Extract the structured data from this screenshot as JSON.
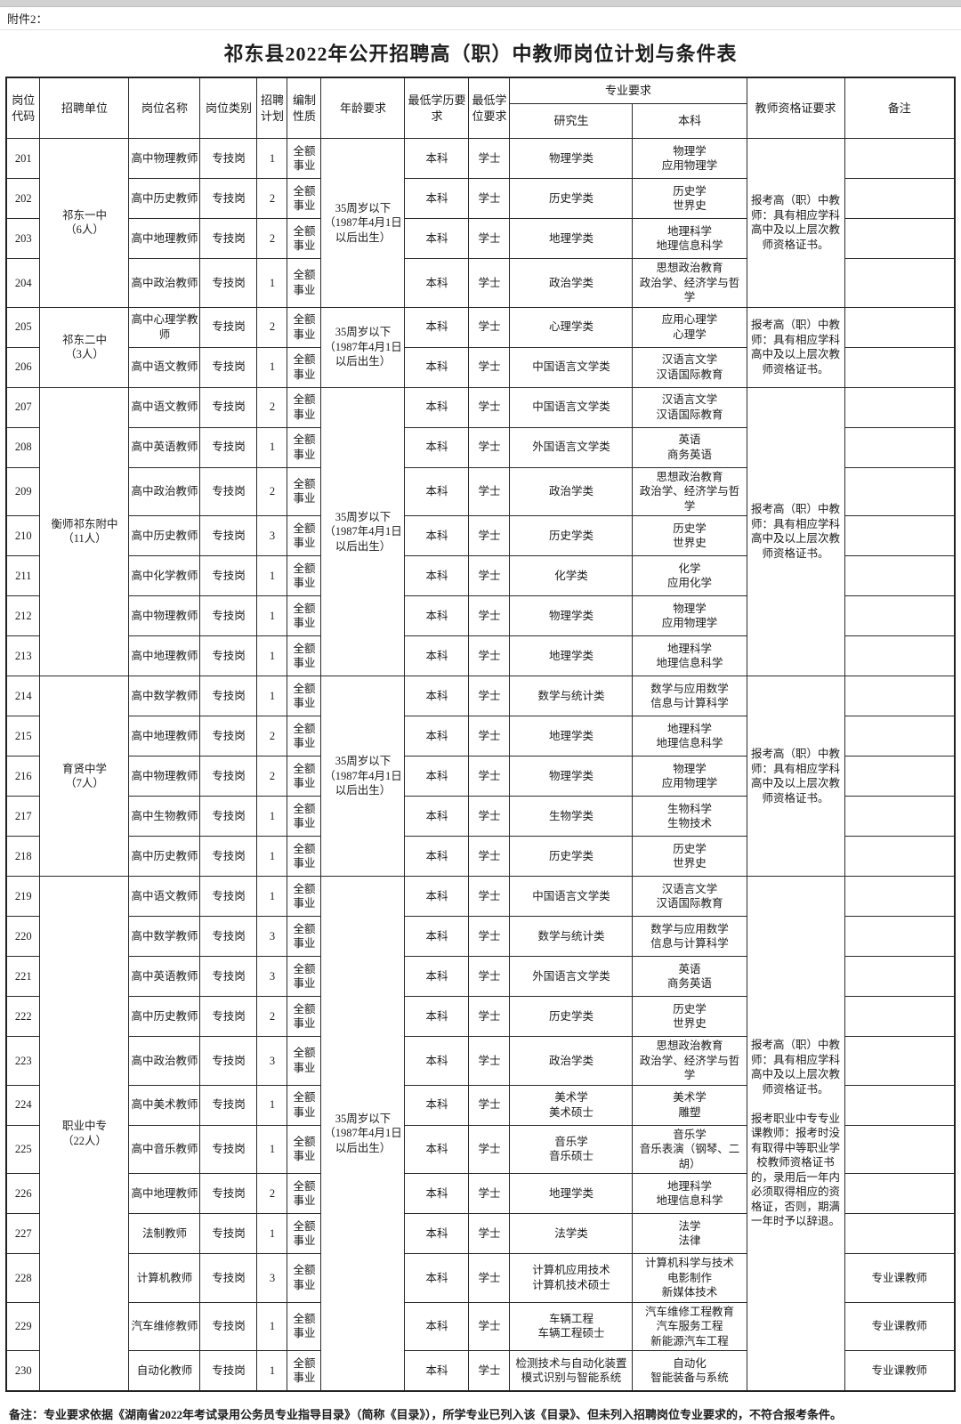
{
  "page": {
    "attachment_label": "附件2：",
    "title": "祁东县2022年公开招聘高（职）中教师岗位计划与条件表",
    "footer_note": "备注：专业要求依据《湖南省2022年考试录用公务员专业指导目录》（简称《目录》），所学专业已列入该《目录》、但未列入招聘岗位专业要求的，不符合报考条件。"
  },
  "table": {
    "headers": {
      "code": "岗位代码",
      "unit": "招聘单位",
      "post": "岗位名称",
      "category": "岗位类别",
      "plan": "招聘计划",
      "nature": "编制性质",
      "age": "年龄要求",
      "min_edu": "最低学历要求",
      "min_degree": "最低学位要求",
      "major": "专业要求",
      "major_grad": "研究生",
      "major_bachelor": "本科",
      "cert": "教师资格证要求",
      "remark": "备注"
    },
    "age_requirement": "35周岁以下（1987年4月1日以后出生）",
    "cert_texts": {
      "high_school": "报考高（职）中教师：具有相应学科高中及以上层次教师资格证书。",
      "vocational": "报考职业中专专业课教师：报考时没有取得中等职业学校教师资格证书的，录用后一年内必须取得相应的资格证，否则，期满一年时予以辞退。"
    },
    "rows": [
      {
        "code": "201",
        "unit": "祁东一中\n（6人）",
        "unit_span": 4,
        "post": "高中物理教师",
        "category": "专技岗",
        "plan": "1",
        "nature": "全额事业",
        "age_span": 4,
        "edu": "本科",
        "degree": "学士",
        "grad": "物理学类",
        "bachelor": "物理学\n应用物理学",
        "cert": [
          "high_school"
        ],
        "cert_span": 4,
        "remark": ""
      },
      {
        "code": "202",
        "post": "高中历史教师",
        "category": "专技岗",
        "plan": "2",
        "nature": "全额事业",
        "edu": "本科",
        "degree": "学士",
        "grad": "历史学类",
        "bachelor": "历史学\n世界史",
        "remark": ""
      },
      {
        "code": "203",
        "post": "高中地理教师",
        "category": "专技岗",
        "plan": "2",
        "nature": "全额事业",
        "edu": "本科",
        "degree": "学士",
        "grad": "地理学类",
        "bachelor": "地理科学\n地理信息科学",
        "remark": ""
      },
      {
        "code": "204",
        "post": "高中政治教师",
        "category": "专技岗",
        "plan": "1",
        "nature": "全额事业",
        "edu": "本科",
        "degree": "学士",
        "grad": "政治学类",
        "bachelor": "思想政治教育\n政治学、经济学与哲学",
        "remark": ""
      },
      {
        "code": "205",
        "unit": "祁东二中\n（3人）",
        "unit_span": 2,
        "post": "高中心理学教师",
        "category": "专技岗",
        "plan": "2",
        "nature": "全额事业",
        "age_span": 2,
        "edu": "本科",
        "degree": "学士",
        "grad": "心理学类",
        "bachelor": "应用心理学\n心理学",
        "cert": [
          "high_school"
        ],
        "cert_span": 2,
        "remark": ""
      },
      {
        "code": "206",
        "post": "高中语文教师",
        "category": "专技岗",
        "plan": "1",
        "nature": "全额事业",
        "edu": "本科",
        "degree": "学士",
        "grad": "中国语言文学类",
        "bachelor": "汉语言文学\n汉语国际教育",
        "remark": ""
      },
      {
        "code": "207",
        "unit": "衡师祁东附中\n（11人）",
        "unit_span": 7,
        "post": "高中语文教师",
        "category": "专技岗",
        "plan": "2",
        "nature": "全额事业",
        "age_span": 7,
        "edu": "本科",
        "degree": "学士",
        "grad": "中国语言文学类",
        "bachelor": "汉语言文学\n汉语国际教育",
        "cert": [
          "high_school"
        ],
        "cert_span": 7,
        "remark": ""
      },
      {
        "code": "208",
        "post": "高中英语教师",
        "category": "专技岗",
        "plan": "1",
        "nature": "全额事业",
        "edu": "本科",
        "degree": "学士",
        "grad": "外国语言文学类",
        "bachelor": "英语\n商务英语",
        "remark": ""
      },
      {
        "code": "209",
        "post": "高中政治教师",
        "category": "专技岗",
        "plan": "2",
        "nature": "全额事业",
        "edu": "本科",
        "degree": "学士",
        "grad": "政治学类",
        "bachelor": "思想政治教育\n政治学、经济学与哲学",
        "remark": ""
      },
      {
        "code": "210",
        "post": "高中历史教师",
        "category": "专技岗",
        "plan": "3",
        "nature": "全额事业",
        "edu": "本科",
        "degree": "学士",
        "grad": "历史学类",
        "bachelor": "历史学\n世界史",
        "remark": ""
      },
      {
        "code": "211",
        "post": "高中化学教师",
        "category": "专技岗",
        "plan": "1",
        "nature": "全额事业",
        "edu": "本科",
        "degree": "学士",
        "grad": "化学类",
        "bachelor": "化学\n应用化学",
        "remark": ""
      },
      {
        "code": "212",
        "post": "高中物理教师",
        "category": "专技岗",
        "plan": "1",
        "nature": "全额事业",
        "edu": "本科",
        "degree": "学士",
        "grad": "物理学类",
        "bachelor": "物理学\n应用物理学",
        "remark": ""
      },
      {
        "code": "213",
        "post": "高中地理教师",
        "category": "专技岗",
        "plan": "1",
        "nature": "全额事业",
        "edu": "本科",
        "degree": "学士",
        "grad": "地理学类",
        "bachelor": "地理科学\n地理信息科学",
        "remark": ""
      },
      {
        "code": "214",
        "unit": "育贤中学\n（7人）",
        "unit_span": 5,
        "post": "高中数学教师",
        "category": "专技岗",
        "plan": "1",
        "nature": "全额事业",
        "age_span": 5,
        "edu": "本科",
        "degree": "学士",
        "grad": "数学与统计类",
        "bachelor": "数学与应用数学\n信息与计算科学",
        "cert": [
          "high_school"
        ],
        "cert_span": 5,
        "remark": ""
      },
      {
        "code": "215",
        "post": "高中地理教师",
        "category": "专技岗",
        "plan": "2",
        "nature": "全额事业",
        "edu": "本科",
        "degree": "学士",
        "grad": "地理学类",
        "bachelor": "地理科学\n地理信息科学",
        "remark": ""
      },
      {
        "code": "216",
        "post": "高中物理教师",
        "category": "专技岗",
        "plan": "2",
        "nature": "全额事业",
        "edu": "本科",
        "degree": "学士",
        "grad": "物理学类",
        "bachelor": "物理学\n应用物理学",
        "remark": ""
      },
      {
        "code": "217",
        "post": "高中生物教师",
        "category": "专技岗",
        "plan": "1",
        "nature": "全额事业",
        "edu": "本科",
        "degree": "学士",
        "grad": "生物学类",
        "bachelor": "生物科学\n生物技术",
        "remark": ""
      },
      {
        "code": "218",
        "post": "高中历史教师",
        "category": "专技岗",
        "plan": "1",
        "nature": "全额事业",
        "edu": "本科",
        "degree": "学士",
        "grad": "历史学类",
        "bachelor": "历史学\n世界史",
        "remark": ""
      },
      {
        "code": "219",
        "unit": "职业中专\n（22人）",
        "unit_span": 12,
        "post": "高中语文教师",
        "category": "专技岗",
        "plan": "1",
        "nature": "全额事业",
        "age_span": 12,
        "edu": "本科",
        "degree": "学士",
        "grad": "中国语言文学类",
        "bachelor": "汉语言文学\n汉语国际教育",
        "cert": [
          "high_school",
          "vocational"
        ],
        "cert_span": 12,
        "remark": ""
      },
      {
        "code": "220",
        "post": "高中数学教师",
        "category": "专技岗",
        "plan": "3",
        "nature": "全额事业",
        "edu": "本科",
        "degree": "学士",
        "grad": "数学与统计类",
        "bachelor": "数学与应用数学\n信息与计算科学",
        "remark": ""
      },
      {
        "code": "221",
        "post": "高中英语教师",
        "category": "专技岗",
        "plan": "3",
        "nature": "全额事业",
        "edu": "本科",
        "degree": "学士",
        "grad": "外国语言文学类",
        "bachelor": "英语\n商务英语",
        "remark": ""
      },
      {
        "code": "222",
        "post": "高中历史教师",
        "category": "专技岗",
        "plan": "2",
        "nature": "全额事业",
        "edu": "本科",
        "degree": "学士",
        "grad": "历史学类",
        "bachelor": "历史学\n世界史",
        "remark": ""
      },
      {
        "code": "223",
        "post": "高中政治教师",
        "category": "专技岗",
        "plan": "3",
        "nature": "全额事业",
        "edu": "本科",
        "degree": "学士",
        "grad": "政治学类",
        "bachelor": "思想政治教育\n政治学、经济学与哲学",
        "remark": ""
      },
      {
        "code": "224",
        "post": "高中美术教师",
        "category": "专技岗",
        "plan": "1",
        "nature": "全额事业",
        "edu": "本科",
        "degree": "学士",
        "grad": "美术学\n美术硕士",
        "bachelor": "美术学\n雕塑",
        "remark": ""
      },
      {
        "code": "225",
        "post": "高中音乐教师",
        "category": "专技岗",
        "plan": "1",
        "nature": "全额事业",
        "edu": "本科",
        "degree": "学士",
        "grad": "音乐学\n音乐硕士",
        "bachelor": "音乐学\n音乐表演（钢琴、二胡）",
        "remark": ""
      },
      {
        "code": "226",
        "post": "高中地理教师",
        "category": "专技岗",
        "plan": "2",
        "nature": "全额事业",
        "edu": "本科",
        "degree": "学士",
        "grad": "地理学类",
        "bachelor": "地理科学\n地理信息科学",
        "remark": ""
      },
      {
        "code": "227",
        "post": "法制教师",
        "category": "专技岗",
        "plan": "1",
        "nature": "全额事业",
        "edu": "本科",
        "degree": "学士",
        "grad": "法学类",
        "bachelor": "法学\n法律",
        "remark": ""
      },
      {
        "code": "228",
        "post": "计算机教师",
        "category": "专技岗",
        "plan": "3",
        "nature": "全额事业",
        "edu": "本科",
        "degree": "学士",
        "grad": "计算机应用技术\n计算机技术硕士",
        "bachelor": "计算机科学与技术\n电影制作\n新媒体技术",
        "remark": "专业课教师"
      },
      {
        "code": "229",
        "post": "汽车维修教师",
        "category": "专技岗",
        "plan": "1",
        "nature": "全额事业",
        "edu": "本科",
        "degree": "学士",
        "grad": "车辆工程\n车辆工程硕士",
        "bachelor": "汽车维修工程教育\n汽车服务工程\n新能源汽车工程",
        "remark": "专业课教师"
      },
      {
        "code": "230",
        "post": "自动化教师",
        "category": "专技岗",
        "plan": "1",
        "nature": "全额事业",
        "edu": "本科",
        "degree": "学士",
        "grad": "检测技术与自动化装置\n模式识别与智能系统",
        "bachelor": "自动化\n智能装备与系统",
        "remark": "专业课教师"
      }
    ]
  }
}
